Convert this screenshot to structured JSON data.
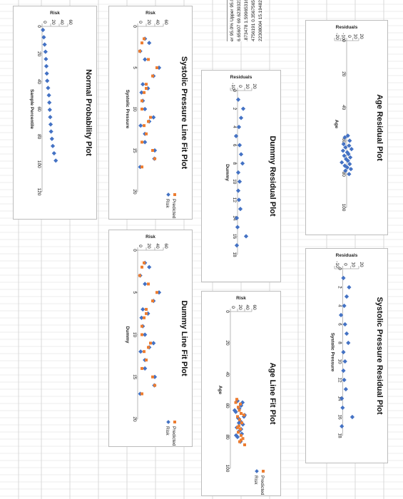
{
  "colors": {
    "series": "#4472c4",
    "predicted": "#ed7d31",
    "grid": "#d9d9d9",
    "axis": "#a6a6a6"
  },
  "table": {
    "rows": [
      "er 95.0% Upper 95.0%",
      "6.65607 69.6239323",
      ".873478 1.59965316",
      "4756191 0.35675657",
      "22308004 15.194828"
    ]
  },
  "chart_data": [
    {
      "id": "normal_probability",
      "type": "scatter",
      "title": "Normal Probability Plot",
      "xlabel": "Sample Percentile",
      "ylabel": "Risk",
      "xlim": [
        0,
        120
      ],
      "xticks": [
        0,
        20,
        40,
        60,
        80,
        100,
        120
      ],
      "ylim": [
        0,
        60
      ],
      "yticks": [
        0,
        20,
        40,
        60
      ],
      "series": [
        {
          "x": [
            2.6,
            7.9,
            13.2,
            18.4,
            23.7,
            28.9,
            34.2,
            39.5,
            44.7,
            50,
            55.3,
            60.5,
            65.8,
            71.1,
            76.3,
            81.6,
            86.8,
            92.1,
            97.4
          ],
          "y": [
            2,
            4,
            6,
            8,
            9,
            10,
            11,
            12,
            14,
            16,
            17,
            18,
            19,
            20,
            21,
            23,
            25,
            28,
            32
          ]
        }
      ]
    },
    {
      "id": "systolic_line_fit",
      "type": "scatter",
      "title": "Systolic Pressure Line Fit  Plot",
      "xlabel": "Systolic Pressure",
      "ylabel": "Risk",
      "xlim": [
        0,
        20
      ],
      "xticks": [
        0,
        5,
        10,
        15,
        20
      ],
      "ylim": [
        0,
        60
      ],
      "yticks": [
        0,
        20,
        40,
        60
      ],
      "legend": [
        "Risk",
        "Predicted Risk"
      ],
      "series": [
        {
          "name": "Risk",
          "x": [
            1.5,
            2,
            3,
            4,
            5,
            6,
            7,
            7.5,
            8,
            9,
            10,
            11,
            11.5,
            12,
            13,
            14,
            15,
            16,
            17
          ],
          "y": [
            17,
            27,
            6,
            17,
            50,
            37,
            12,
            24,
            9,
            12,
            17,
            37,
            27,
            7,
            17,
            17,
            40,
            39,
            6
          ]
        },
        {
          "name": "Predicted Risk",
          "x": [
            1.5,
            2,
            3,
            4,
            5,
            6,
            7,
            7.5,
            8,
            9,
            10,
            11,
            11.5,
            12,
            13,
            14,
            15,
            16,
            17
          ],
          "y": [
            15,
            10,
            5,
            25,
            45,
            35,
            20,
            20,
            15,
            10,
            10,
            30,
            25,
            15,
            20,
            10,
            35,
            40,
            10
          ]
        }
      ]
    },
    {
      "id": "dummy_line_fit",
      "type": "scatter",
      "title": "Dummy Line Fit  Plot",
      "xlabel": "Dummy",
      "ylabel": "Risk",
      "xlim": [
        0,
        20
      ],
      "xticks": [
        0,
        5,
        10,
        15,
        20
      ],
      "ylim": [
        0,
        60
      ],
      "yticks": [
        0,
        20,
        40,
        60
      ],
      "legend": [
        "Risk",
        "Predicted Risk"
      ],
      "series": [
        {
          "name": "Risk",
          "x": [
            1.5,
            2,
            3,
            4,
            5,
            6,
            7,
            7.5,
            8,
            9,
            10,
            11,
            11.5,
            12,
            13,
            14,
            15,
            16,
            17
          ],
          "y": [
            17,
            27,
            6,
            17,
            50,
            37,
            12,
            24,
            9,
            12,
            17,
            37,
            27,
            7,
            17,
            17,
            40,
            39,
            6
          ]
        },
        {
          "name": "Predicted Risk",
          "x": [
            1.5,
            2,
            3,
            4,
            5,
            6,
            7,
            7.5,
            8,
            9,
            10,
            11,
            11.5,
            12,
            13,
            14,
            15,
            16,
            17
          ],
          "y": [
            15,
            10,
            5,
            25,
            45,
            35,
            20,
            20,
            15,
            10,
            10,
            30,
            25,
            15,
            20,
            10,
            35,
            40,
            10
          ]
        }
      ]
    },
    {
      "id": "dummy_residual",
      "type": "scatter",
      "title": "Dummy  Residual Plot",
      "xlabel": "Dummy",
      "ylabel": "Residuals",
      "xlim": [
        0,
        18
      ],
      "xticks": [
        0,
        2,
        4,
        6,
        8,
        10,
        12,
        14,
        16,
        18
      ],
      "ylim": [
        -10,
        20
      ],
      "yticks": [
        -10,
        0,
        10,
        20
      ],
      "series": [
        {
          "x": [
            1,
            2,
            3,
            4,
            5,
            6,
            7,
            8,
            9,
            10,
            11,
            12,
            13,
            14,
            15,
            16,
            17
          ],
          "y": [
            1,
            8,
            5,
            2,
            -2,
            3,
            5,
            7,
            1,
            3,
            1,
            2,
            4,
            -1,
            0,
            12,
            -1
          ]
        }
      ]
    },
    {
      "id": "age_line_fit",
      "type": "scatter",
      "title": "Age Line Fit  Plot",
      "xlabel": "Age",
      "ylabel": "Risk",
      "xlim": [
        0,
        100
      ],
      "xticks": [
        0,
        20,
        40,
        60,
        80,
        100
      ],
      "ylim": [
        0,
        60
      ],
      "yticks": [
        0,
        20,
        40,
        60
      ],
      "legend": [
        "Risk",
        "Predicted Risk"
      ],
      "series": [
        {
          "name": "Risk",
          "x": [
            57,
            60,
            62,
            64,
            66,
            68,
            70,
            72,
            74,
            76,
            78,
            80,
            58,
            63,
            67,
            71,
            75,
            79,
            83
          ],
          "y": [
            20,
            30,
            25,
            15,
            40,
            22,
            28,
            35,
            18,
            26,
            32,
            20,
            34,
            12,
            38,
            24,
            30,
            16,
            28
          ]
        },
        {
          "name": "Predicted Risk",
          "x": [
            56,
            59,
            61,
            63,
            65,
            67,
            69,
            71,
            73,
            75,
            77,
            79,
            81,
            83,
            85,
            58,
            66,
            74,
            82
          ],
          "y": [
            18,
            28,
            22,
            25,
            30,
            20,
            26,
            32,
            24,
            28,
            22,
            30,
            35,
            26,
            40,
            15,
            38,
            20,
            30
          ]
        }
      ]
    },
    {
      "id": "age_residual",
      "type": "scatter",
      "title": "Age  Residual Plot",
      "xlabel": "Age",
      "ylabel": "Residuals",
      "xlim": [
        0,
        100
      ],
      "xticks": [
        0,
        20,
        40,
        60,
        80,
        100
      ],
      "ylim": [
        -20,
        20
      ],
      "yticks": [
        -20,
        -10,
        0,
        10,
        20
      ],
      "series": [
        {
          "x": [
            57,
            58,
            60,
            62,
            63,
            64,
            65,
            66,
            67,
            68,
            69,
            70,
            71,
            72,
            73,
            74,
            75,
            76,
            77,
            78,
            80
          ],
          "y": [
            2,
            -3,
            5,
            -5,
            4,
            -2,
            8,
            -6,
            1,
            3,
            -4,
            6,
            -1,
            2,
            -8,
            5,
            -3,
            1,
            7,
            -2,
            4
          ]
        }
      ]
    },
    {
      "id": "systolic_residual",
      "type": "scatter",
      "title": "Systolic Pressure  Residual Plot",
      "xlabel": "Systolic Pressure",
      "ylabel": "Residuals",
      "xlim": [
        0,
        18
      ],
      "xticks": [
        0,
        2,
        4,
        6,
        8,
        10,
        12,
        14,
        16,
        18
      ],
      "ylim": [
        -10,
        20
      ],
      "yticks": [
        -10,
        0,
        10,
        20
      ],
      "series": [
        {
          "x": [
            1,
            2,
            3,
            4,
            5,
            6,
            7,
            8,
            9,
            10,
            11,
            12,
            13,
            14,
            15,
            16,
            17
          ],
          "y": [
            1,
            8,
            5,
            2,
            -2,
            3,
            5,
            7,
            1,
            3,
            1,
            2,
            4,
            -1,
            0,
            12,
            -1
          ]
        }
      ]
    }
  ]
}
